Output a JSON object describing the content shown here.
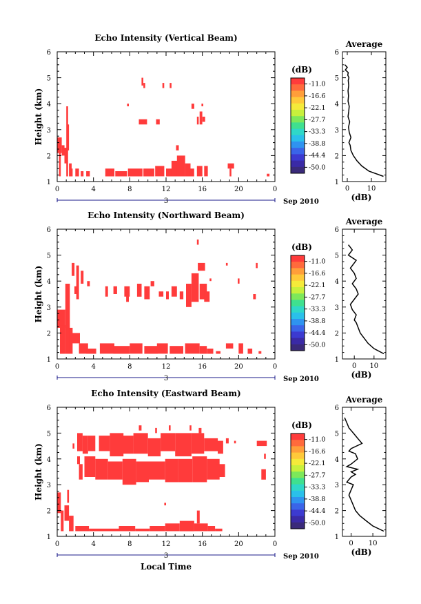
{
  "figure": {
    "xlabel_bottom": "Local Time",
    "date_label": "Sep 2010",
    "day_label": "3"
  },
  "colorbar": {
    "label": "(dB)",
    "ticks": [
      "-11.0",
      "-16.6",
      "-22.1",
      "-27.7",
      "-33.3",
      "-38.8",
      "-44.4",
      "-50.0"
    ],
    "colors": [
      "#ff3b3b",
      "#ff6a3c",
      "#ff9e3a",
      "#ffc93a",
      "#f5ea3a",
      "#c8f03c",
      "#7de85a",
      "#3fe08f",
      "#2fd8c8",
      "#2ac0ea",
      "#2f93f0",
      "#3a64e8",
      "#3c3ad0",
      "#3a2aa6",
      "#3a2a7a"
    ]
  },
  "chart_data": [
    {
      "type": "heatmap",
      "title": "Echo Intensity (Vertical Beam)",
      "ylabel": "Height (km)",
      "xlim": [
        0,
        24
      ],
      "ylim": [
        1,
        6
      ],
      "xticks": [
        "0",
        "4",
        "8",
        "12",
        "16",
        "20",
        "0"
      ],
      "yticks": [
        "1",
        "2",
        "3",
        "4",
        "5",
        "6"
      ],
      "cells": [
        [
          0.0,
          2.1,
          0.5,
          2.7
        ],
        [
          0.2,
          1.2,
          0.2,
          2.6
        ],
        [
          0.5,
          2.0,
          0.3,
          2.4
        ],
        [
          0.8,
          1.7,
          0.3,
          2.3
        ],
        [
          1.0,
          1.2,
          0.2,
          3.9
        ],
        [
          1.1,
          2.2,
          0.2,
          3.2
        ],
        [
          1.3,
          1.2,
          0.3,
          1.7
        ],
        [
          1.5,
          1.2,
          0.2,
          1.5
        ],
        [
          2.0,
          1.2,
          0.4,
          1.5
        ],
        [
          2.6,
          1.2,
          0.3,
          1.4
        ],
        [
          3.2,
          1.2,
          0.4,
          1.4
        ],
        [
          5.3,
          1.2,
          1.0,
          1.5
        ],
        [
          6.4,
          1.2,
          1.3,
          1.4
        ],
        [
          7.8,
          1.2,
          1.6,
          1.5
        ],
        [
          9.5,
          1.2,
          1.2,
          1.5
        ],
        [
          10.8,
          1.2,
          1.0,
          1.6
        ],
        [
          12.0,
          1.2,
          0.9,
          1.5
        ],
        [
          12.6,
          1.2,
          1.4,
          1.8
        ],
        [
          13.2,
          1.2,
          0.9,
          2.0
        ],
        [
          14.1,
          1.2,
          0.6,
          1.7
        ],
        [
          14.6,
          1.2,
          0.5,
          1.5
        ],
        [
          15.4,
          1.2,
          0.6,
          1.6
        ],
        [
          16.2,
          1.2,
          0.4,
          1.6
        ],
        [
          13.1,
          2.2,
          0.3,
          2.4
        ],
        [
          18.8,
          1.5,
          0.7,
          1.7
        ],
        [
          19.0,
          1.2,
          0.2,
          1.5
        ],
        [
          23.1,
          1.2,
          0.3,
          1.3
        ],
        [
          9.3,
          4.7,
          0.2,
          5.0
        ],
        [
          9.5,
          4.6,
          0.2,
          4.8
        ],
        [
          11.6,
          4.6,
          0.2,
          4.8
        ],
        [
          12.4,
          4.6,
          0.2,
          4.8
        ],
        [
          7.7,
          3.9,
          0.2,
          4.0
        ],
        [
          9.0,
          3.2,
          0.9,
          3.4
        ],
        [
          10.9,
          3.2,
          0.4,
          3.4
        ],
        [
          14.8,
          3.8,
          0.3,
          4.0
        ],
        [
          15.4,
          3.2,
          0.2,
          3.5
        ],
        [
          15.7,
          3.2,
          0.3,
          3.7
        ],
        [
          16.0,
          3.3,
          0.3,
          3.5
        ],
        [
          15.9,
          3.9,
          0.2,
          4.0
        ]
      ]
    },
    {
      "type": "heatmap",
      "title": "Echo Intensity (Northward Beam)",
      "ylabel": "Height (km)",
      "xlim": [
        0,
        24
      ],
      "ylim": [
        1,
        6
      ],
      "xticks": [
        "0",
        "4",
        "8",
        "12",
        "16",
        "20",
        "0"
      ],
      "yticks": [
        "1",
        "2",
        "3",
        "4",
        "5",
        "6"
      ],
      "cells": [
        [
          0.0,
          2.2,
          0.9,
          2.9
        ],
        [
          0.3,
          1.2,
          0.6,
          2.3
        ],
        [
          0.9,
          1.2,
          0.5,
          3.9
        ],
        [
          1.3,
          1.2,
          0.4,
          2.2
        ],
        [
          1.6,
          1.6,
          0.9,
          2.0
        ],
        [
          2.4,
          1.2,
          1.0,
          1.6
        ],
        [
          3.2,
          1.2,
          1.1,
          1.4
        ],
        [
          4.7,
          1.2,
          1.6,
          1.6
        ],
        [
          6.2,
          1.2,
          1.8,
          1.5
        ],
        [
          8.0,
          1.2,
          1.4,
          1.6
        ],
        [
          9.6,
          1.2,
          1.5,
          1.5
        ],
        [
          11.0,
          1.2,
          1.2,
          1.6
        ],
        [
          12.4,
          1.2,
          1.5,
          1.5
        ],
        [
          14.1,
          1.2,
          1.6,
          1.6
        ],
        [
          15.7,
          1.2,
          0.8,
          1.5
        ],
        [
          16.5,
          1.2,
          0.7,
          1.4
        ],
        [
          17.5,
          1.2,
          0.5,
          1.3
        ],
        [
          18.6,
          1.4,
          0.8,
          1.6
        ],
        [
          20.0,
          1.2,
          0.5,
          1.6
        ],
        [
          21.0,
          1.2,
          0.5,
          1.4
        ],
        [
          22.2,
          1.2,
          0.3,
          1.3
        ],
        [
          1.6,
          4.2,
          0.3,
          4.7
        ],
        [
          2.1,
          3.3,
          0.3,
          4.6
        ],
        [
          2.6,
          3.9,
          0.3,
          4.4
        ],
        [
          1.9,
          3.5,
          0.4,
          3.8
        ],
        [
          3.3,
          3.8,
          0.3,
          4.0
        ],
        [
          5.3,
          3.4,
          0.3,
          3.8
        ],
        [
          6.2,
          3.5,
          0.4,
          3.8
        ],
        [
          7.4,
          3.4,
          0.6,
          3.8
        ],
        [
          7.6,
          3.2,
          0.3,
          3.5
        ],
        [
          8.8,
          3.4,
          0.5,
          3.9
        ],
        [
          9.6,
          3.3,
          0.6,
          3.8
        ],
        [
          10.3,
          3.8,
          0.4,
          4.0
        ],
        [
          11.2,
          3.4,
          0.5,
          3.6
        ],
        [
          12.0,
          3.3,
          0.3,
          3.6
        ],
        [
          12.6,
          3.4,
          0.6,
          3.8
        ],
        [
          13.5,
          3.3,
          0.4,
          3.6
        ],
        [
          14.2,
          3.0,
          0.6,
          3.9
        ],
        [
          14.8,
          3.2,
          0.8,
          4.3
        ],
        [
          15.7,
          3.3,
          0.8,
          3.9
        ],
        [
          15.5,
          4.4,
          0.8,
          4.7
        ],
        [
          16.2,
          3.2,
          0.6,
          3.6
        ],
        [
          15.4,
          5.4,
          0.2,
          5.6
        ],
        [
          16.8,
          4.0,
          0.2,
          4.1
        ],
        [
          18.6,
          4.6,
          0.2,
          4.7
        ],
        [
          19.9,
          3.9,
          0.2,
          4.1
        ],
        [
          21.6,
          3.3,
          0.3,
          3.5
        ],
        [
          21.9,
          4.5,
          0.2,
          4.7
        ]
      ]
    },
    {
      "type": "heatmap",
      "title": "Echo Intensity (Eastward Beam)",
      "ylabel": "Height (km)",
      "xlim": [
        0,
        24
      ],
      "ylim": [
        1,
        6
      ],
      "xticks": [
        "0",
        "4",
        "8",
        "12",
        "16",
        "20",
        "0"
      ],
      "yticks": [
        "1",
        "2",
        "3",
        "4",
        "5",
        "6"
      ],
      "cells": [
        [
          0.0,
          1.9,
          0.4,
          2.7
        ],
        [
          0.4,
          1.2,
          0.3,
          2.0
        ],
        [
          0.8,
          1.6,
          0.5,
          2.2
        ],
        [
          1.1,
          2.3,
          0.2,
          2.8
        ],
        [
          1.3,
          1.2,
          0.5,
          1.8
        ],
        [
          2.0,
          1.2,
          1.5,
          1.4
        ],
        [
          3.5,
          1.2,
          1.4,
          1.3
        ],
        [
          4.9,
          1.2,
          1.9,
          1.3
        ],
        [
          6.8,
          1.2,
          1.8,
          1.4
        ],
        [
          8.6,
          1.2,
          1.6,
          1.3
        ],
        [
          10.2,
          1.2,
          1.7,
          1.4
        ],
        [
          11.9,
          1.2,
          1.6,
          1.5
        ],
        [
          13.5,
          1.2,
          1.6,
          1.6
        ],
        [
          15.1,
          1.2,
          1.5,
          1.5
        ],
        [
          15.4,
          1.5,
          0.3,
          2.0
        ],
        [
          16.6,
          1.2,
          0.8,
          1.4
        ],
        [
          17.4,
          1.2,
          0.8,
          1.3
        ],
        [
          11.8,
          2.2,
          0.2,
          2.3
        ],
        [
          1.7,
          4.4,
          0.2,
          4.6
        ],
        [
          2.2,
          3.8,
          0.3,
          4.1
        ],
        [
          2.2,
          4.3,
          0.6,
          5.0
        ],
        [
          2.8,
          4.2,
          0.6,
          4.9
        ],
        [
          3.4,
          4.3,
          0.8,
          4.9
        ],
        [
          2.4,
          3.2,
          0.4,
          3.8
        ],
        [
          3.0,
          3.3,
          1.2,
          4.1
        ],
        [
          4.2,
          3.2,
          1.4,
          4.0
        ],
        [
          4.6,
          4.3,
          1.2,
          4.9
        ],
        [
          5.8,
          4.1,
          1.5,
          5.0
        ],
        [
          5.6,
          3.2,
          1.6,
          3.9
        ],
        [
          7.0,
          4.2,
          1.4,
          4.9
        ],
        [
          7.2,
          3.0,
          1.5,
          4.0
        ],
        [
          8.4,
          4.2,
          1.6,
          5.0
        ],
        [
          8.7,
          3.1,
          1.4,
          3.9
        ],
        [
          10.0,
          4.1,
          1.4,
          4.8
        ],
        [
          10.1,
          3.2,
          1.8,
          3.9
        ],
        [
          11.4,
          4.3,
          1.6,
          5.0
        ],
        [
          11.9,
          3.1,
          1.4,
          4.0
        ],
        [
          13.0,
          4.1,
          1.8,
          5.0
        ],
        [
          13.3,
          3.1,
          1.6,
          4.0
        ],
        [
          14.8,
          4.2,
          1.4,
          5.0
        ],
        [
          14.9,
          3.1,
          1.6,
          4.1
        ],
        [
          16.2,
          4.3,
          1.5,
          4.8
        ],
        [
          16.5,
          3.2,
          1.4,
          4.0
        ],
        [
          17.7,
          4.2,
          0.6,
          4.7
        ],
        [
          17.5,
          3.3,
          1.0,
          3.8
        ],
        [
          9.0,
          5.1,
          0.3,
          5.3
        ],
        [
          10.8,
          5.0,
          0.2,
          5.2
        ],
        [
          12.3,
          5.1,
          0.2,
          5.3
        ],
        [
          14.6,
          5.1,
          0.2,
          5.3
        ],
        [
          15.6,
          5.0,
          0.3,
          5.2
        ],
        [
          18.6,
          4.6,
          0.3,
          4.8
        ],
        [
          19.5,
          4.6,
          0.2,
          4.7
        ],
        [
          22.0,
          4.5,
          1.1,
          4.7
        ],
        [
          22.5,
          3.2,
          0.5,
          3.6
        ],
        [
          22.8,
          4.0,
          0.2,
          4.2
        ]
      ]
    }
  ],
  "profiles": [
    {
      "type": "line",
      "title": "Average",
      "xlabel": "(dB)",
      "xlim": [
        -2,
        16
      ],
      "ylim": [
        1,
        6
      ],
      "xticks": [
        "0",
        "10"
      ],
      "yticks": [
        "1",
        "2",
        "3",
        "4",
        "5",
        "6"
      ],
      "x": [
        15,
        9,
        6,
        4,
        2.5,
        1.5,
        1.2,
        0.7,
        1.5,
        0.8,
        0.5,
        1.0,
        0.3,
        0.6,
        0.8,
        0.3,
        0.5,
        0.3,
        0.6,
        0.4,
        0.7,
        0.2,
        0.4,
        -0.8,
        0.0,
        -1.0
      ],
      "y": [
        1.2,
        1.4,
        1.6,
        1.8,
        2.0,
        2.2,
        2.4,
        2.5,
        2.7,
        2.9,
        3.1,
        3.3,
        3.5,
        3.7,
        3.9,
        4.1,
        4.3,
        4.5,
        4.7,
        4.9,
        5.0,
        5.1,
        5.2,
        5.3,
        5.4,
        5.5
      ]
    },
    {
      "type": "line",
      "title": "Average",
      "xlabel": "(dB)",
      "xlim": [
        -6,
        16
      ],
      "ylim": [
        1,
        6
      ],
      "xticks": [
        "0",
        "10"
      ],
      "yticks": [
        "1",
        "2",
        "3",
        "4",
        "5",
        "6"
      ],
      "x": [
        15,
        10,
        7,
        5,
        3,
        2,
        1,
        0,
        1,
        -1,
        -2,
        0,
        2,
        1,
        -1,
        1,
        0,
        -2,
        0,
        1,
        -1,
        -3,
        -2,
        -1,
        -2,
        -3
      ],
      "y": [
        1.2,
        1.4,
        1.6,
        1.8,
        2.0,
        2.2,
        2.4,
        2.5,
        2.7,
        2.9,
        3.1,
        3.3,
        3.5,
        3.7,
        3.9,
        4.1,
        4.3,
        4.5,
        4.7,
        4.8,
        4.9,
        5.0,
        5.1,
        5.2,
        5.3,
        5.4
      ]
    },
    {
      "type": "line",
      "title": "Average",
      "xlabel": "(dB)",
      "xlim": [
        -4,
        16
      ],
      "ylim": [
        1,
        6
      ],
      "xticks": [
        "0",
        "10"
      ],
      "yticks": [
        "1",
        "2",
        "3",
        "4",
        "5",
        "6"
      ],
      "x": [
        15,
        10,
        7,
        4,
        2,
        1,
        0,
        -1,
        0,
        1,
        -2,
        -1,
        0,
        2,
        0,
        3,
        -2,
        0,
        3,
        2,
        -1,
        0,
        5,
        3,
        1,
        -1,
        -2,
        -3
      ],
      "y": [
        1.2,
        1.4,
        1.6,
        1.8,
        2.0,
        2.2,
        2.4,
        2.6,
        2.8,
        3.0,
        3.1,
        3.2,
        3.3,
        3.4,
        3.5,
        3.6,
        3.7,
        3.8,
        4.0,
        4.2,
        4.3,
        4.4,
        4.6,
        4.8,
        5.0,
        5.2,
        5.4,
        5.6
      ]
    }
  ]
}
